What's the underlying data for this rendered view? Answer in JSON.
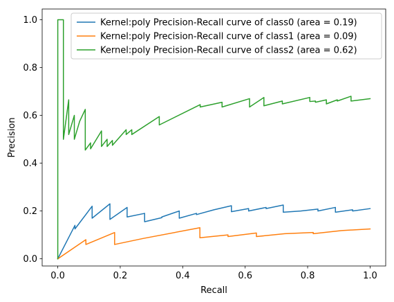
{
  "chart_data": {
    "type": "line",
    "title": "",
    "xlabel": "Recall",
    "ylabel": "Precision",
    "xlim": [
      -0.05,
      1.05
    ],
    "ylim": [
      -0.03,
      1.045
    ],
    "xticks": [
      0.0,
      0.2,
      0.4,
      0.6,
      0.8,
      1.0
    ],
    "xtick_labels": [
      "0.0",
      "0.2",
      "0.4",
      "0.6",
      "0.8",
      "1.0"
    ],
    "yticks": [
      0.0,
      0.2,
      0.4,
      0.6,
      0.8,
      1.0
    ],
    "ytick_labels": [
      "0.0",
      "0.2",
      "0.4",
      "0.6",
      "0.8",
      "1.0"
    ],
    "grid": false,
    "legend_position": "top-right",
    "series": [
      {
        "name": "Kernel:poly Precision-Recall curve of class0 (area = 0.19)",
        "color": "#1f77b4",
        "points": [
          [
            0.0,
            0.0
          ],
          [
            0.055,
            0.14
          ],
          [
            0.055,
            0.125
          ],
          [
            0.11,
            0.22
          ],
          [
            0.11,
            0.17
          ],
          [
            0.167,
            0.23
          ],
          [
            0.167,
            0.165
          ],
          [
            0.222,
            0.215
          ],
          [
            0.222,
            0.175
          ],
          [
            0.278,
            0.19
          ],
          [
            0.278,
            0.155
          ],
          [
            0.333,
            0.172
          ],
          [
            0.333,
            0.175
          ],
          [
            0.389,
            0.2
          ],
          [
            0.389,
            0.17
          ],
          [
            0.444,
            0.19
          ],
          [
            0.444,
            0.185
          ],
          [
            0.5,
            0.205
          ],
          [
            0.556,
            0.222
          ],
          [
            0.556,
            0.197
          ],
          [
            0.611,
            0.21
          ],
          [
            0.611,
            0.2
          ],
          [
            0.667,
            0.215
          ],
          [
            0.667,
            0.21
          ],
          [
            0.722,
            0.225
          ],
          [
            0.722,
            0.195
          ],
          [
            0.778,
            0.2
          ],
          [
            0.833,
            0.208
          ],
          [
            0.833,
            0.2
          ],
          [
            0.889,
            0.215
          ],
          [
            0.889,
            0.195
          ],
          [
            0.944,
            0.205
          ],
          [
            0.944,
            0.2
          ],
          [
            1.0,
            0.21
          ]
        ]
      },
      {
        "name": "Kernel:poly Precision-Recall curve of class1 (area = 0.09)",
        "color": "#ff7f0e",
        "points": [
          [
            0.0,
            0.0
          ],
          [
            0.09,
            0.08
          ],
          [
            0.09,
            0.06
          ],
          [
            0.182,
            0.11
          ],
          [
            0.182,
            0.06
          ],
          [
            0.273,
            0.085
          ],
          [
            0.273,
            0.085
          ],
          [
            0.455,
            0.13
          ],
          [
            0.455,
            0.088
          ],
          [
            0.545,
            0.1
          ],
          [
            0.545,
            0.093
          ],
          [
            0.636,
            0.108
          ],
          [
            0.636,
            0.093
          ],
          [
            0.727,
            0.105
          ],
          [
            0.818,
            0.11
          ],
          [
            0.818,
            0.105
          ],
          [
            0.909,
            0.118
          ],
          [
            1.0,
            0.125
          ]
        ]
      },
      {
        "name": "Kernel:poly Precision-Recall curve of class2 (area = 0.62)",
        "color": "#2ca02c",
        "points": [
          [
            0.0,
            0.0
          ],
          [
            0.0,
            1.0
          ],
          [
            0.018,
            1.0
          ],
          [
            0.018,
            0.5
          ],
          [
            0.035,
            0.665
          ],
          [
            0.035,
            0.52
          ],
          [
            0.053,
            0.6
          ],
          [
            0.053,
            0.5
          ],
          [
            0.07,
            0.575
          ],
          [
            0.088,
            0.625
          ],
          [
            0.088,
            0.455
          ],
          [
            0.105,
            0.485
          ],
          [
            0.105,
            0.46
          ],
          [
            0.14,
            0.535
          ],
          [
            0.14,
            0.47
          ],
          [
            0.158,
            0.5
          ],
          [
            0.158,
            0.47
          ],
          [
            0.175,
            0.495
          ],
          [
            0.175,
            0.475
          ],
          [
            0.219,
            0.54
          ],
          [
            0.219,
            0.52
          ],
          [
            0.237,
            0.54
          ],
          [
            0.237,
            0.52
          ],
          [
            0.325,
            0.595
          ],
          [
            0.325,
            0.56
          ],
          [
            0.456,
            0.645
          ],
          [
            0.456,
            0.635
          ],
          [
            0.526,
            0.655
          ],
          [
            0.526,
            0.635
          ],
          [
            0.614,
            0.67
          ],
          [
            0.614,
            0.635
          ],
          [
            0.66,
            0.675
          ],
          [
            0.66,
            0.64
          ],
          [
            0.719,
            0.66
          ],
          [
            0.719,
            0.648
          ],
          [
            0.807,
            0.675
          ],
          [
            0.807,
            0.658
          ],
          [
            0.825,
            0.66
          ],
          [
            0.825,
            0.655
          ],
          [
            0.86,
            0.665
          ],
          [
            0.86,
            0.648
          ],
          [
            0.895,
            0.665
          ],
          [
            0.895,
            0.66
          ],
          [
            0.939,
            0.68
          ],
          [
            0.939,
            0.66
          ],
          [
            1.0,
            0.67
          ]
        ]
      }
    ]
  }
}
